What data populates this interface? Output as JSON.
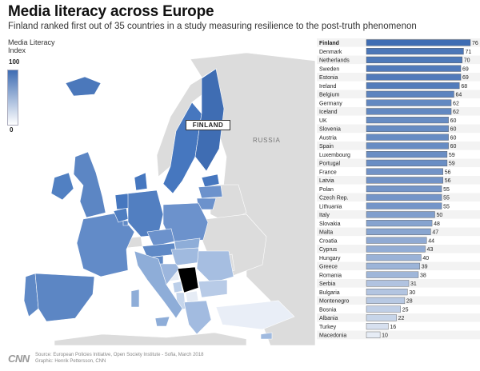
{
  "header": {
    "title": "Media literacy across Europe",
    "subtitle": "Finland ranked first out of 35 countries in a study measuring resilience to the post-truth phenomenon"
  },
  "legend": {
    "title_line1": "Media Literacy",
    "title_line2": "Index",
    "max_label": "100",
    "min_label": "0",
    "color_high": "#3f6db3",
    "color_low": "#ffffff"
  },
  "map": {
    "callout_label": "FINLAND",
    "region_label": "RUSSIA",
    "land_color": "#dcdcdc",
    "sea_color": "#ffffff"
  },
  "footer": {
    "logo": "CNN",
    "source": "Source: European Policies Initiative, Open Society Institute - Sofia, March 2018",
    "graphic": "Graphic: Henrik Pettersson, CNN"
  },
  "chart_data": {
    "type": "bar",
    "orientation": "horizontal",
    "title": "Media literacy across Europe",
    "xlim": [
      0,
      76
    ],
    "grid": false,
    "highlight": "Finland",
    "colors": {
      "high": "#3f6db3",
      "low": "#ffffff",
      "border": "#555555"
    },
    "categories": [
      "Finland",
      "Denmark",
      "Netherlands",
      "Sweden",
      "Estonia",
      "Ireland",
      "Belgium",
      "Germany",
      "Iceland",
      "UK",
      "Slovenia",
      "Austria",
      "Spain",
      "Luxembourg",
      "Portugal",
      "France",
      "Latvia",
      "Polan",
      "Czech Rep.",
      "Lithuania",
      "Italy",
      "Slovakia",
      "Malta",
      "Croatia",
      "Cyprus",
      "Hungary",
      "Greece",
      "Romania",
      "Serbia",
      "Bulgaria",
      "Montenegro",
      "Bosnia",
      "Albania",
      "Turkey",
      "Macedonia"
    ],
    "values": [
      76,
      71,
      70,
      69,
      69,
      68,
      64,
      62,
      62,
      60,
      60,
      60,
      60,
      59,
      59,
      56,
      56,
      55,
      55,
      55,
      50,
      48,
      47,
      44,
      43,
      40,
      39,
      38,
      31,
      30,
      28,
      25,
      22,
      16,
      10
    ]
  }
}
